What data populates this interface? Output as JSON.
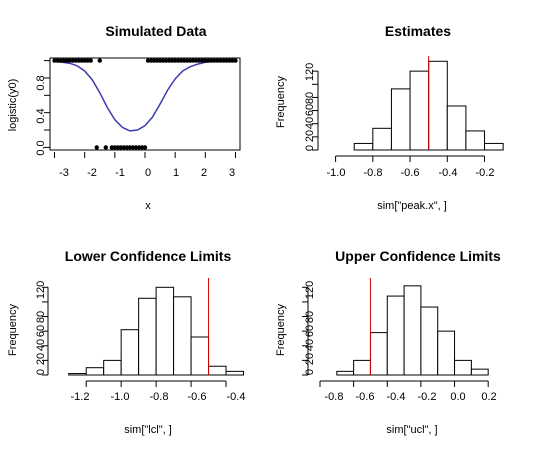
{
  "chart_data": [
    {
      "type": "scatter",
      "title": "Simulated Data",
      "xlabel": "x",
      "ylabel": "logistic(y0)",
      "xlim": [
        -3.15,
        3.15
      ],
      "ylim": [
        -0.03,
        1.03
      ],
      "x_ticks": [
        "-3",
        "-2",
        "-1",
        "0",
        "1",
        "2",
        "3"
      ],
      "y_ticks": [
        "0.0",
        "0.4",
        "0.8"
      ],
      "points_y1_x": [
        -3.0,
        -2.9,
        -2.8,
        -2.7,
        -2.6,
        -2.5,
        -2.4,
        -2.3,
        -2.2,
        -2.1,
        -2.0,
        -1.9,
        -1.8,
        -1.5,
        0.1,
        0.2,
        0.3,
        0.4,
        0.5,
        0.6,
        0.7,
        0.8,
        0.9,
        1.0,
        1.1,
        1.2,
        1.3,
        1.4,
        1.5,
        1.6,
        1.7,
        1.8,
        1.9,
        2.0,
        2.1,
        2.2,
        2.3,
        2.4,
        2.5,
        2.6,
        2.7,
        2.8,
        2.9,
        3.0
      ],
      "points_y0_x": [
        -1.6,
        -1.3,
        -1.1,
        -1.0,
        -0.9,
        -0.8,
        -0.7,
        -0.6,
        -0.5,
        -0.4,
        -0.3,
        -0.2,
        -0.1,
        0.0
      ],
      "curve": {
        "x": [
          -3.0,
          -2.75,
          -2.5,
          -2.25,
          -2.0,
          -1.75,
          -1.5,
          -1.25,
          -1.0,
          -0.75,
          -0.5,
          -0.25,
          0.0,
          0.25,
          0.5,
          0.75,
          1.0,
          1.25,
          1.5,
          1.75,
          2.0,
          2.25,
          2.5,
          2.75,
          3.0
        ],
        "y": [
          0.99,
          0.98,
          0.97,
          0.94,
          0.88,
          0.78,
          0.63,
          0.46,
          0.32,
          0.23,
          0.19,
          0.2,
          0.25,
          0.35,
          0.5,
          0.66,
          0.79,
          0.88,
          0.93,
          0.96,
          0.98,
          0.99,
          0.99,
          0.99,
          0.99
        ],
        "color": "#3b3bb0"
      }
    },
    {
      "type": "bar",
      "title": "Estimates",
      "xlabel": "sim[\"peak.x\", ]",
      "ylabel": "Frequency",
      "xlim": [
        -1.03,
        -0.09
      ],
      "ylim": [
        0,
        140
      ],
      "x_ticks": [
        "-1.0",
        "-0.8",
        "-0.6",
        "-0.4",
        "-0.2"
      ],
      "y_ticks": [
        "0",
        "20",
        "40",
        "60",
        "80",
        "120"
      ],
      "bins": [
        [
          -1.0,
          -0.9
        ],
        [
          -0.9,
          -0.8
        ],
        [
          -0.8,
          -0.7
        ],
        [
          -0.7,
          -0.6
        ],
        [
          -0.6,
          -0.5
        ],
        [
          -0.5,
          -0.4
        ],
        [
          -0.4,
          -0.3
        ],
        [
          -0.3,
          -0.2
        ],
        [
          -0.2,
          -0.1
        ]
      ],
      "values": [
        0,
        10,
        33,
        93,
        120,
        135,
        67,
        29,
        10
      ],
      "reference_line": -0.5,
      "reference_color": "#d00000"
    },
    {
      "type": "bar",
      "title": "Lower Confidence Limits",
      "xlabel": "sim[\"lcl\", ]",
      "ylabel": "Frequency",
      "xlim": [
        -1.35,
        -0.32
      ],
      "ylim": [
        0,
        130
      ],
      "x_ticks": [
        "-1.2",
        "-1.0",
        "-0.8",
        "-0.6",
        "-0.4"
      ],
      "y_ticks": [
        "0",
        "20",
        "40",
        "60",
        "80",
        "120"
      ],
      "bins": [
        [
          -1.3,
          -1.2
        ],
        [
          -1.2,
          -1.1
        ],
        [
          -1.1,
          -1.0
        ],
        [
          -1.0,
          -0.9
        ],
        [
          -0.9,
          -0.8
        ],
        [
          -0.8,
          -0.7
        ],
        [
          -0.7,
          -0.6
        ],
        [
          -0.6,
          -0.5
        ],
        [
          -0.5,
          -0.4
        ],
        [
          -0.4,
          -0.3
        ]
      ],
      "values": [
        2,
        10,
        20,
        62,
        105,
        120,
        107,
        52,
        12,
        5
      ],
      "reference_line": -0.5,
      "reference_color": "#d00000"
    },
    {
      "type": "bar",
      "title": "Upper Confidence Limits",
      "xlabel": "sim[\"ucl\", ]",
      "ylabel": "Frequency",
      "xlim": [
        -0.8,
        0.3
      ],
      "ylim": [
        0,
        130
      ],
      "x_ticks": [
        "-0.8",
        "-0.6",
        "-0.4",
        "-0.2",
        "0.0",
        "0.2"
      ],
      "y_ticks": [
        "0",
        "20",
        "40",
        "60",
        "80",
        "120"
      ],
      "bins": [
        [
          -0.7,
          -0.6
        ],
        [
          -0.6,
          -0.5
        ],
        [
          -0.5,
          -0.4
        ],
        [
          -0.4,
          -0.3
        ],
        [
          -0.3,
          -0.2
        ],
        [
          -0.2,
          -0.1
        ],
        [
          -0.1,
          0.0
        ],
        [
          0.0,
          0.1
        ],
        [
          0.1,
          0.2
        ]
      ],
      "values": [
        5,
        20,
        58,
        108,
        122,
        93,
        60,
        20,
        8
      ],
      "reference_line": -0.5,
      "reference_color": "#d00000"
    }
  ]
}
